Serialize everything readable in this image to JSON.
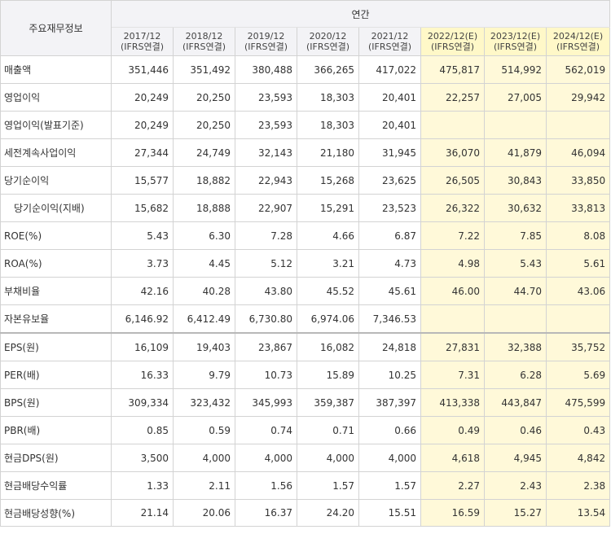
{
  "header": {
    "corner": "주요재무정보",
    "group": "연간",
    "periods": [
      {
        "date": "2017/12",
        "basis": "(IFRS연결)",
        "estimate": false
      },
      {
        "date": "2018/12",
        "basis": "(IFRS연결)",
        "estimate": false
      },
      {
        "date": "2019/12",
        "basis": "(IFRS연결)",
        "estimate": false
      },
      {
        "date": "2020/12",
        "basis": "(IFRS연결)",
        "estimate": false
      },
      {
        "date": "2021/12",
        "basis": "(IFRS연결)",
        "estimate": false
      },
      {
        "date": "2022/12(E)",
        "basis": "(IFRS연결)",
        "estimate": true
      },
      {
        "date": "2023/12(E)",
        "basis": "(IFRS연결)",
        "estimate": true
      },
      {
        "date": "2024/12(E)",
        "basis": "(IFRS연결)",
        "estimate": true
      }
    ]
  },
  "rows": [
    {
      "label": "매출액",
      "values": [
        "351,446",
        "351,492",
        "380,488",
        "366,265",
        "417,022",
        "475,817",
        "514,992",
        "562,019"
      ]
    },
    {
      "label": "영업이익",
      "values": [
        "20,249",
        "20,250",
        "23,593",
        "18,303",
        "20,401",
        "22,257",
        "27,005",
        "29,942"
      ]
    },
    {
      "label": "영업이익(발표기준)",
      "values": [
        "20,249",
        "20,250",
        "23,593",
        "18,303",
        "20,401",
        "",
        "",
        ""
      ]
    },
    {
      "label": "세전계속사업이익",
      "values": [
        "27,344",
        "24,749",
        "32,143",
        "21,180",
        "31,945",
        "36,070",
        "41,879",
        "46,094"
      ]
    },
    {
      "label": "당기순이익",
      "values": [
        "15,577",
        "18,882",
        "22,943",
        "15,268",
        "23,625",
        "26,505",
        "30,843",
        "33,850"
      ]
    },
    {
      "label": "당기순이익(지배)",
      "indent": true,
      "values": [
        "15,682",
        "18,888",
        "22,907",
        "15,291",
        "23,523",
        "26,322",
        "30,632",
        "33,813"
      ]
    },
    {
      "label": "ROE(%)",
      "values": [
        "5.43",
        "6.30",
        "7.28",
        "4.66",
        "6.87",
        "7.22",
        "7.85",
        "8.08"
      ]
    },
    {
      "label": "ROA(%)",
      "values": [
        "3.73",
        "4.45",
        "5.12",
        "3.21",
        "4.73",
        "4.98",
        "5.43",
        "5.61"
      ]
    },
    {
      "label": "부채비율",
      "values": [
        "42.16",
        "40.28",
        "43.80",
        "45.52",
        "45.61",
        "46.00",
        "44.70",
        "43.06"
      ]
    },
    {
      "label": "자본유보율",
      "values": [
        "6,146.92",
        "6,412.49",
        "6,730.80",
        "6,974.06",
        "7,346.53",
        "",
        "",
        ""
      ]
    },
    {
      "label": "EPS(원)",
      "separator": true,
      "values": [
        "16,109",
        "19,403",
        "23,867",
        "16,082",
        "24,818",
        "27,831",
        "32,388",
        "35,752"
      ]
    },
    {
      "label": "PER(배)",
      "values": [
        "16.33",
        "9.79",
        "10.73",
        "15.89",
        "10.25",
        "7.31",
        "6.28",
        "5.69"
      ]
    },
    {
      "label": "BPS(원)",
      "values": [
        "309,334",
        "323,432",
        "345,993",
        "359,387",
        "387,397",
        "413,338",
        "443,847",
        "475,599"
      ]
    },
    {
      "label": "PBR(배)",
      "values": [
        "0.85",
        "0.59",
        "0.74",
        "0.71",
        "0.66",
        "0.49",
        "0.46",
        "0.43"
      ]
    },
    {
      "label": "현금DPS(원)",
      "values": [
        "3,500",
        "4,000",
        "4,000",
        "4,000",
        "4,000",
        "4,618",
        "4,945",
        "4,842"
      ]
    },
    {
      "label": "현금배당수익률",
      "values": [
        "1.33",
        "2.11",
        "1.56",
        "1.57",
        "1.57",
        "2.27",
        "2.43",
        "2.38"
      ]
    },
    {
      "label": "현금배당성향(%)",
      "values": [
        "21.14",
        "20.06",
        "16.37",
        "24.20",
        "15.51",
        "16.59",
        "15.27",
        "13.54"
      ]
    }
  ]
}
